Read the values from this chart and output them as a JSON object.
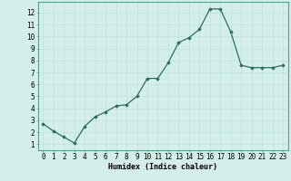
{
  "x": [
    0,
    1,
    2,
    3,
    4,
    5,
    6,
    7,
    8,
    9,
    10,
    11,
    12,
    13,
    14,
    15,
    16,
    17,
    18,
    19,
    20,
    21,
    22,
    23
  ],
  "y": [
    2.7,
    2.1,
    1.6,
    1.1,
    2.5,
    3.3,
    3.7,
    4.2,
    4.3,
    5.0,
    6.5,
    6.5,
    7.8,
    9.5,
    9.9,
    10.6,
    12.3,
    12.3,
    10.4,
    7.6,
    7.4,
    7.4,
    7.4,
    7.6
  ],
  "line_color": "#2d6e5e",
  "marker": "D",
  "markersize": 1.8,
  "linewidth": 0.9,
  "background_color": "#d4eeea",
  "grid_color": "#b8ddd8",
  "xlabel": "Humidex (Indice chaleur)",
  "xlabel_fontsize": 6.0,
  "tick_fontsize": 5.5,
  "xlim": [
    -0.5,
    23.5
  ],
  "ylim": [
    0.5,
    12.9
  ],
  "yticks": [
    1,
    2,
    3,
    4,
    5,
    6,
    7,
    8,
    9,
    10,
    11,
    12
  ],
  "xticks": [
    0,
    1,
    2,
    3,
    4,
    5,
    6,
    7,
    8,
    9,
    10,
    11,
    12,
    13,
    14,
    15,
    16,
    17,
    18,
    19,
    20,
    21,
    22,
    23
  ]
}
